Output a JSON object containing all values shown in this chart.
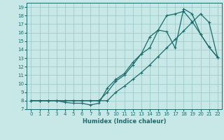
{
  "background_color": "#c8e8e8",
  "grid_color": "#a0cccc",
  "line_color": "#1a6b6b",
  "xlabel": "Humidex (Indice chaleur)",
  "xlim": [
    -0.5,
    22.5
  ],
  "ylim": [
    7,
    19.5
  ],
  "xticks": [
    0,
    1,
    2,
    3,
    4,
    5,
    6,
    7,
    8,
    9,
    10,
    11,
    12,
    13,
    14,
    15,
    16,
    17,
    18,
    19,
    20,
    21,
    22
  ],
  "yticks": [
    7,
    8,
    9,
    10,
    11,
    12,
    13,
    14,
    15,
    16,
    17,
    18,
    19
  ],
  "line1_x": [
    0,
    1,
    2,
    3,
    4,
    5,
    6,
    7,
    8,
    9,
    10,
    11,
    12,
    13,
    14,
    15,
    16,
    17,
    18,
    19,
    20,
    21,
    22
  ],
  "line1_y": [
    8,
    8,
    8,
    8,
    7.8,
    7.7,
    7.7,
    7.5,
    7.7,
    9.5,
    10.5,
    11.2,
    12.5,
    13.5,
    14.2,
    16.3,
    16.1,
    14.2,
    18.8,
    18.2,
    15.8,
    14.3,
    13.1
  ],
  "line2_x": [
    0,
    1,
    2,
    3,
    4,
    5,
    6,
    7,
    8,
    9,
    10,
    11,
    12,
    13,
    14,
    15,
    16,
    17,
    18,
    19,
    20,
    21,
    22
  ],
  "line2_y": [
    8,
    8,
    8,
    8,
    8,
    8,
    8,
    8,
    8,
    9.0,
    10.3,
    11.0,
    12.2,
    13.5,
    15.5,
    16.3,
    18.0,
    18.2,
    18.5,
    17.3,
    15.8,
    14.3,
    13.1
  ],
  "line3_x": [
    0,
    1,
    2,
    3,
    4,
    5,
    6,
    7,
    8,
    9,
    10,
    11,
    12,
    13,
    14,
    15,
    16,
    17,
    18,
    19,
    20,
    21,
    22
  ],
  "line3_y": [
    8,
    8,
    8,
    8,
    8,
    8,
    8,
    8,
    8,
    8,
    9.0,
    9.7,
    10.5,
    11.3,
    12.2,
    13.2,
    14.2,
    15.2,
    16.2,
    17.2,
    18.2,
    17.2,
    13.1
  ]
}
